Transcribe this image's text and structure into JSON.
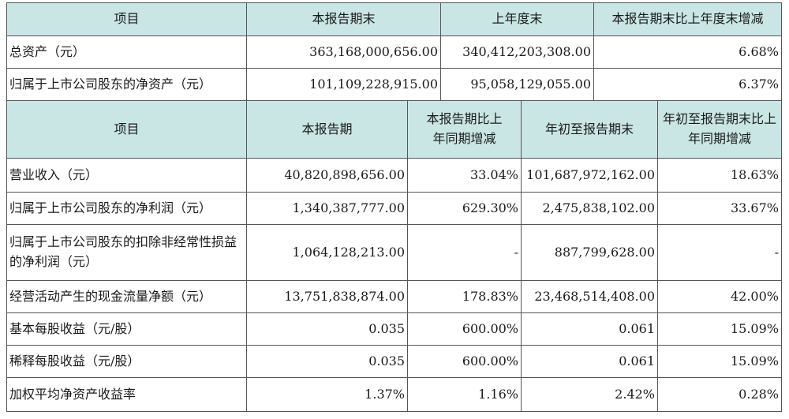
{
  "top_table": {
    "headers": [
      "项目",
      "本报告期末",
      "上年度末",
      "本报告期末比上年度末增减"
    ],
    "rows": [
      [
        "总资产（元）",
        "363,168,000,656.00",
        "340,412,203,308.00",
        "6.68%"
      ],
      [
        "归属于上市公司股东的净资产（元）",
        "101,109,228,915.00",
        "95,058,129,055.00",
        "6.37%"
      ]
    ]
  },
  "main_table": {
    "headers": [
      "项目",
      "本报告期",
      "本报告期比上年同期增减",
      "年初至报告期末",
      "年初至报告期末比上年同期增减"
    ],
    "rows": [
      [
        "营业收入（元）",
        "40,820,898,656.00",
        "33.04%",
        "101,687,972,162.00",
        "18.63%"
      ],
      [
        "归属于上市公司股东的净利润（元）",
        "1,340,387,777.00",
        "629.30%",
        "2,475,838,102.00",
        "33.67%"
      ],
      [
        "归属于上市公司股东的扣除非经常性损益的净利润（元）",
        "1,064,128,213.00",
        "-",
        "887,799,628.00",
        "-"
      ],
      [
        "经营活动产生的现金流量净额（元）",
        "13,751,838,874.00",
        "178.83%",
        "23,468,514,408.00",
        "42.00%"
      ],
      [
        "基本每股收益（元/股）",
        "0.035",
        "600.00%",
        "0.061",
        "15.09%"
      ],
      [
        "稀释每股收益（元/股）",
        "0.035",
        "600.00%",
        "0.061",
        "15.09%"
      ],
      [
        "加权平均净资产收益率",
        "1.37%",
        "1.16%",
        "2.42%",
        "0.28%"
      ]
    ]
  }
}
